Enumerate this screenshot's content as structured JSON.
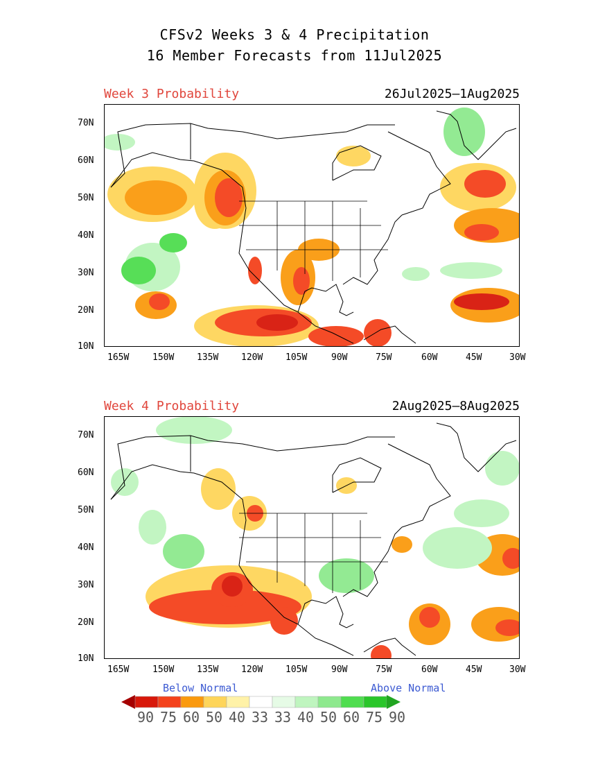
{
  "header": {
    "title_line1": "CFSv2 Weeks 3 & 4 Precipitation",
    "title_line2": "16 Member Forecasts from 11Jul2025"
  },
  "panels": [
    {
      "label": "Week 3 Probability",
      "dates": "26Jul2025—1Aug2025"
    },
    {
      "label": "Week 4 Probability",
      "dates": "2Aug2025—8Aug2025"
    }
  ],
  "axes": {
    "lat_labels": [
      "70N",
      "60N",
      "50N",
      "40N",
      "30N",
      "20N",
      "10N"
    ],
    "lon_labels": [
      "165W",
      "150W",
      "135W",
      "120W",
      "105W",
      "90W",
      "75W",
      "60W",
      "45W",
      "30W"
    ]
  },
  "legend": {
    "below_label": "Below Normal",
    "above_label": "Above Normal",
    "values": [
      "90",
      "75",
      "60",
      "50",
      "40",
      "33",
      "33",
      "40",
      "50",
      "60",
      "75",
      "90"
    ],
    "colors": [
      "#a50000",
      "#d8180a",
      "#f4421c",
      "#fa9a0e",
      "#fed55a",
      "#fff2a8",
      "#ffffff",
      "#e6fbe6",
      "#bff5bf",
      "#8ee98e",
      "#4fdd4f",
      "#2ac62a",
      "#21a521"
    ]
  }
}
